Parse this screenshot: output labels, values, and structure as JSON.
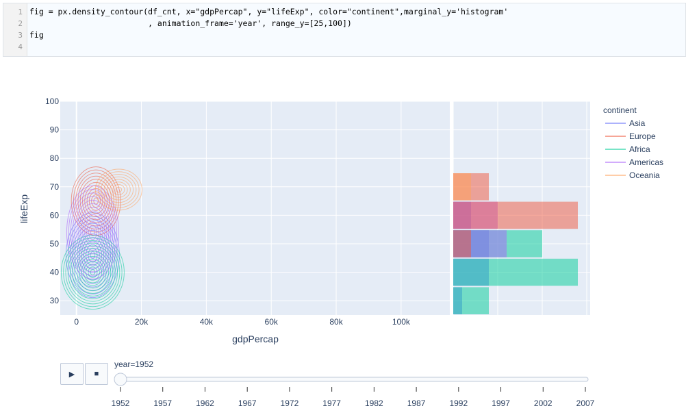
{
  "code": {
    "line_numbers": [
      "1",
      "2",
      "3",
      "4"
    ],
    "lines": [
      "fig = px.density_contour(df_cnt, x=\"gdpPercap\", y=\"lifeExp\", color=\"continent\",marginal_y='histogram'",
      "                         , animation_frame='year', range_y=[25,100])",
      "fig",
      ""
    ]
  },
  "chart_data": {
    "type": "density_contour_with_marginal_histogram",
    "xlabel": "gdpPercap",
    "ylabel": "lifeExp",
    "x_ticks": [
      "0",
      "20k",
      "40k",
      "60k",
      "80k",
      "100k"
    ],
    "x_tick_values": [
      0,
      20000,
      40000,
      60000,
      80000,
      100000
    ],
    "xlim": [
      -5000,
      115000
    ],
    "y_ticks": [
      "30",
      "40",
      "50",
      "60",
      "70",
      "80",
      "90",
      "100"
    ],
    "y_tick_values": [
      30,
      40,
      50,
      60,
      70,
      80,
      90,
      100
    ],
    "ylim": [
      25,
      100
    ],
    "grid": true,
    "legend": {
      "title": "continent",
      "placement": "right",
      "entries": [
        "Asia",
        "Europe",
        "Africa",
        "Americas",
        "Oceania"
      ]
    },
    "series": [
      {
        "name": "Asia",
        "color": "#636efa",
        "center_x": 5000,
        "center_y": 46
      },
      {
        "name": "Europe",
        "color": "#ef553b",
        "center_x": 6000,
        "center_y": 65
      },
      {
        "name": "Africa",
        "color": "#00cc96",
        "center_x": 5000,
        "center_y": 40
      },
      {
        "name": "Americas",
        "color": "#ab63fa",
        "center_x": 5000,
        "center_y": 54
      },
      {
        "name": "Oceania",
        "color": "#ffa15a",
        "center_x": 13000,
        "center_y": 69
      }
    ],
    "marginal_histogram": {
      "bin_edges": [
        25,
        35,
        45,
        55,
        65,
        75,
        85
      ],
      "bars": [
        {
          "series": "Asia",
          "counts": [
            1,
            4,
            4,
            2,
            0,
            0
          ]
        },
        {
          "series": "Africa",
          "counts": [
            4,
            14,
            10,
            0,
            0,
            0
          ]
        },
        {
          "series": "Americas",
          "counts": [
            0,
            0,
            6,
            5,
            0,
            0
          ]
        },
        {
          "series": "Europe",
          "counts": [
            0,
            0,
            2,
            14,
            4,
            0
          ]
        },
        {
          "series": "Oceania",
          "counts": [
            0,
            0,
            0,
            0,
            2,
            0
          ]
        }
      ]
    }
  },
  "animation": {
    "play_icon": "play-icon",
    "stop_icon": "stop-icon",
    "current_label": "year=1952",
    "years": [
      "1952",
      "1957",
      "1962",
      "1967",
      "1972",
      "1977",
      "1982",
      "1987",
      "1992",
      "1997",
      "2002",
      "2007"
    ],
    "current_index": 0
  }
}
